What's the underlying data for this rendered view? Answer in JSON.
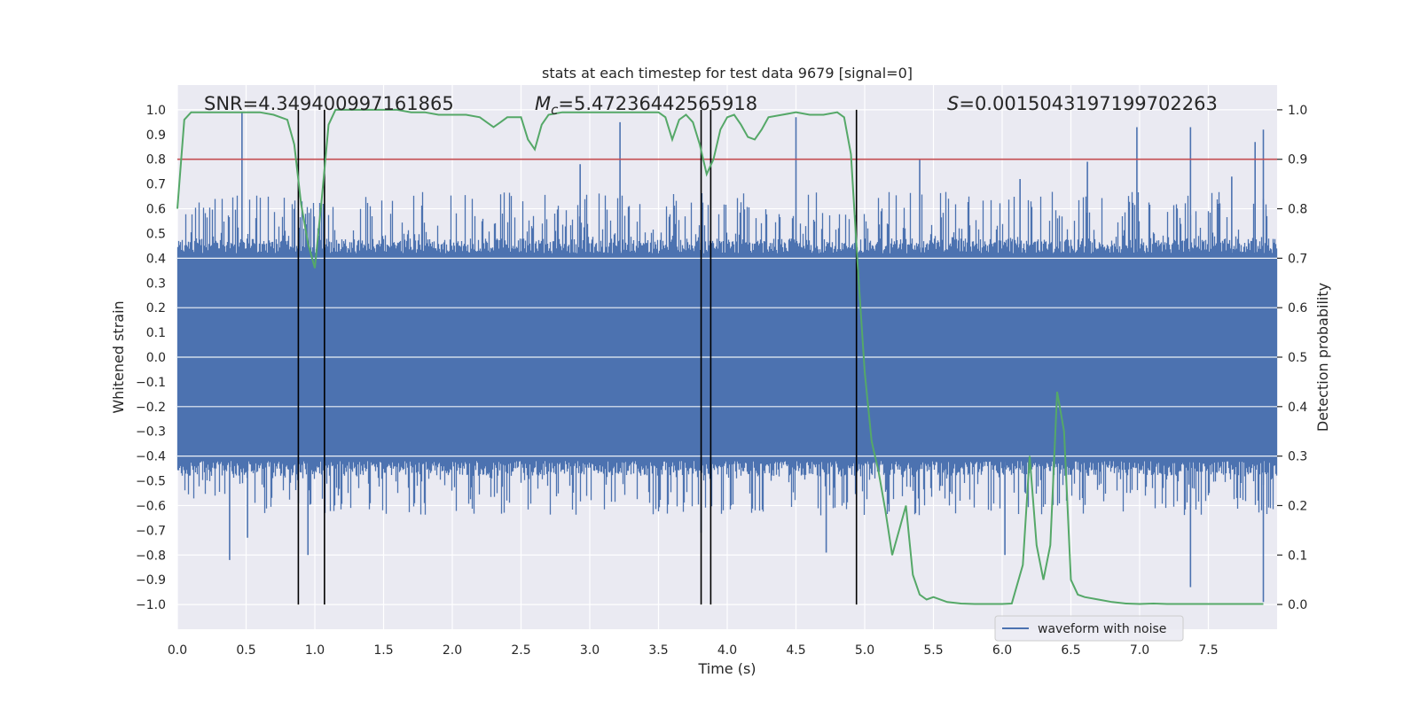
{
  "chart_data": {
    "type": "line",
    "title": "stats at each timestep for test data 9679 [signal=0]",
    "xlabel": "Time (s)",
    "ylabel_left": "Whitened strain",
    "ylabel_right": "Detection probability",
    "xlim": [
      0.0,
      8.0
    ],
    "ylim_left": [
      -1.1,
      1.1
    ],
    "ylim_right": [
      -0.05,
      1.05
    ],
    "x_ticks": [
      0.0,
      0.5,
      1.0,
      1.5,
      2.0,
      2.5,
      3.0,
      3.5,
      4.0,
      4.5,
      5.0,
      5.5,
      6.0,
      6.5,
      7.0,
      7.5
    ],
    "x_tick_labels": [
      "0.0",
      "0.5",
      "1.0",
      "1.5",
      "2.0",
      "2.5",
      "3.0",
      "3.5",
      "4.0",
      "4.5",
      "5.0",
      "5.5",
      "6.0",
      "6.5",
      "7.0",
      "7.5"
    ],
    "y_left_ticks": [
      1.0,
      0.9,
      0.8,
      0.7,
      0.6,
      0.5,
      0.4,
      0.3,
      0.2,
      0.1,
      0.0,
      -0.1,
      -0.2,
      -0.3,
      -0.4,
      -0.5,
      -0.6,
      -0.7,
      -0.8,
      -0.9,
      -1.0
    ],
    "y_left_tick_labels": [
      "1.0",
      "0.9",
      "0.8",
      "0.7",
      "0.6",
      "0.5",
      "0.4",
      "0.3",
      "0.2",
      "0.1",
      "0.0",
      "−0.1",
      "−0.2",
      "−0.3",
      "−0.4",
      "−0.5",
      "−0.6",
      "−0.7",
      "−0.8",
      "−0.9",
      "−1.0"
    ],
    "y_right_ticks": [
      1.0,
      0.9,
      0.8,
      0.7,
      0.6,
      0.5,
      0.4,
      0.3,
      0.2,
      0.1,
      0.0
    ],
    "y_right_tick_labels": [
      "1.0",
      "0.9",
      "0.8",
      "0.7",
      "0.6",
      "0.5",
      "0.4",
      "0.3",
      "0.2",
      "0.1",
      "0.0"
    ],
    "annotations": {
      "snr": "SNR=4.349400997161865",
      "mc_symbol": "M",
      "mc_sub": "c",
      "mc_value": "=5.47236442565918",
      "s_symbol": "S",
      "s_value": "=0.0015043197199702263"
    },
    "threshold": {
      "axis": "right",
      "value": 0.9,
      "color": "#c44e52"
    },
    "event_lines_x": [
      0.88,
      1.07,
      3.81,
      3.88,
      4.94
    ],
    "waveform": {
      "name": "waveform with noise",
      "color": "#4c72b0",
      "core_amplitude": 0.42,
      "spikes": [
        {
          "t": 0.47,
          "v": 0.99
        },
        {
          "t": 0.38,
          "v": -0.82
        },
        {
          "t": 0.51,
          "v": -0.73
        },
        {
          "t": 0.95,
          "v": -0.8
        },
        {
          "t": 2.93,
          "v": 0.78
        },
        {
          "t": 3.22,
          "v": 0.95
        },
        {
          "t": 3.81,
          "v": -0.71
        },
        {
          "t": 4.5,
          "v": 0.97
        },
        {
          "t": 4.72,
          "v": -0.79
        },
        {
          "t": 5.4,
          "v": 0.8
        },
        {
          "t": 6.02,
          "v": -0.8
        },
        {
          "t": 6.13,
          "v": 0.72
        },
        {
          "t": 6.62,
          "v": 0.79
        },
        {
          "t": 6.98,
          "v": 0.93
        },
        {
          "t": 7.37,
          "v": 0.93
        },
        {
          "t": 7.37,
          "v": -0.93
        },
        {
          "t": 7.84,
          "v": 0.87
        },
        {
          "t": 7.9,
          "v": 0.92
        },
        {
          "t": 7.9,
          "v": -0.99
        },
        {
          "t": 7.67,
          "v": 0.73
        }
      ]
    },
    "probability": {
      "color": "#55a868",
      "x": [
        0.0,
        0.05,
        0.1,
        0.2,
        0.3,
        0.4,
        0.5,
        0.6,
        0.7,
        0.8,
        0.85,
        0.9,
        0.95,
        1.0,
        1.05,
        1.1,
        1.15,
        1.2,
        1.3,
        1.4,
        1.5,
        1.6,
        1.7,
        1.8,
        1.9,
        2.0,
        2.1,
        2.2,
        2.25,
        2.3,
        2.35,
        2.4,
        2.5,
        2.55,
        2.6,
        2.65,
        2.7,
        2.8,
        2.9,
        3.0,
        3.1,
        3.2,
        3.3,
        3.4,
        3.5,
        3.55,
        3.6,
        3.65,
        3.7,
        3.75,
        3.8,
        3.85,
        3.9,
        3.95,
        4.0,
        4.05,
        4.1,
        4.15,
        4.2,
        4.25,
        4.3,
        4.4,
        4.5,
        4.6,
        4.7,
        4.8,
        4.85,
        4.9,
        4.95,
        5.0,
        5.05,
        5.1,
        5.15,
        5.2,
        5.25,
        5.3,
        5.35,
        5.4,
        5.45,
        5.5,
        5.6,
        5.7,
        5.8,
        5.9,
        6.0,
        6.07,
        6.15,
        6.2,
        6.25,
        6.3,
        6.35,
        6.4,
        6.45,
        6.5,
        6.55,
        6.6,
        6.7,
        6.8,
        6.9,
        7.0,
        7.1,
        7.2,
        7.3,
        7.5,
        7.7,
        7.9
      ],
      "y": [
        0.8,
        0.98,
        0.995,
        0.995,
        0.995,
        0.995,
        0.995,
        0.995,
        0.99,
        0.98,
        0.93,
        0.81,
        0.73,
        0.68,
        0.82,
        0.97,
        1.0,
        1.0,
        1.0,
        1.0,
        1.0,
        1.0,
        0.995,
        0.995,
        0.99,
        0.99,
        0.99,
        0.985,
        0.975,
        0.965,
        0.975,
        0.985,
        0.985,
        0.94,
        0.92,
        0.97,
        0.99,
        0.995,
        0.995,
        0.995,
        0.995,
        0.995,
        0.995,
        0.995,
        0.995,
        0.985,
        0.94,
        0.98,
        0.99,
        0.975,
        0.93,
        0.87,
        0.9,
        0.96,
        0.985,
        0.99,
        0.97,
        0.945,
        0.94,
        0.96,
        0.985,
        0.99,
        0.995,
        0.99,
        0.99,
        0.995,
        0.985,
        0.91,
        0.68,
        0.47,
        0.33,
        0.27,
        0.19,
        0.1,
        0.15,
        0.2,
        0.06,
        0.02,
        0.01,
        0.015,
        0.005,
        0.002,
        0.001,
        0.001,
        0.001,
        0.002,
        0.08,
        0.3,
        0.12,
        0.05,
        0.12,
        0.43,
        0.35,
        0.05,
        0.02,
        0.015,
        0.01,
        0.005,
        0.002,
        0.001,
        0.002,
        0.001,
        0.001,
        0.001,
        0.001,
        0.001
      ]
    },
    "legend": {
      "label": "waveform with noise",
      "placement": "lower-right"
    }
  }
}
